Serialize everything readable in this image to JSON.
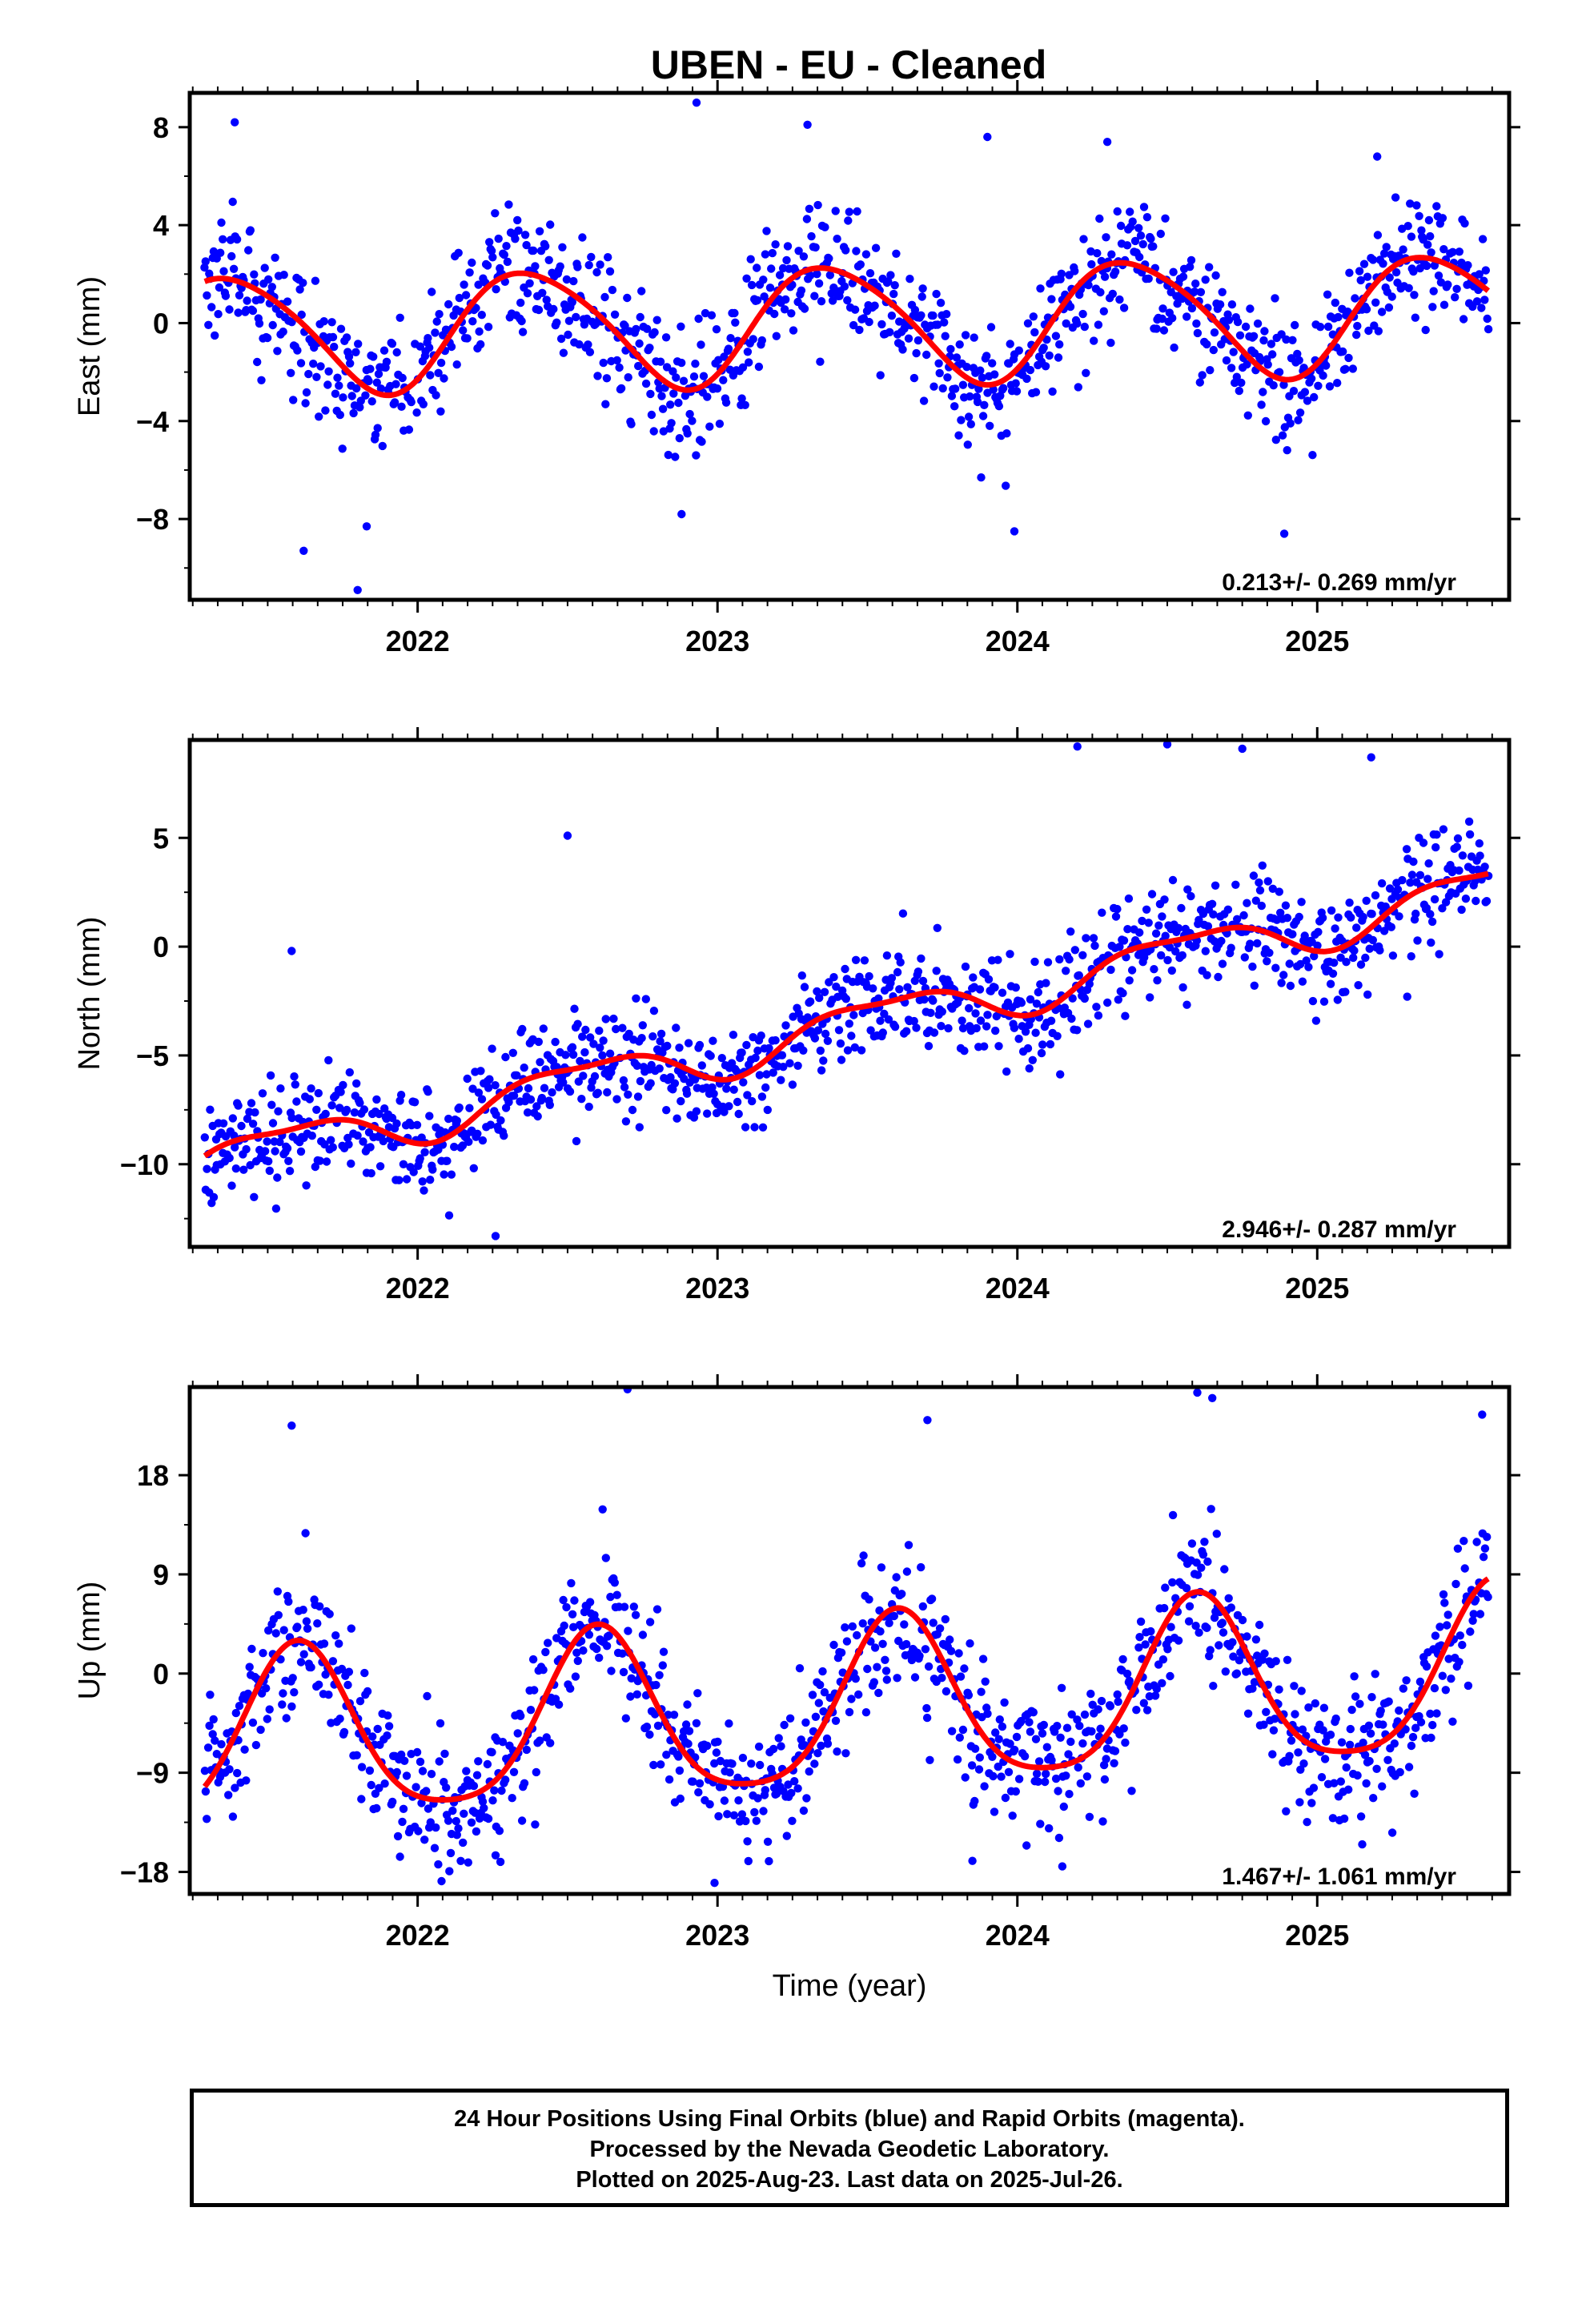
{
  "title": "UBEN  - EU - Cleaned",
  "colors": {
    "points": "#0000ff",
    "fit": "#ff0000",
    "frame": "#000000"
  },
  "chart_data": [
    {
      "type": "scatter",
      "name": "east",
      "ylabel": "East (mm)",
      "xlabel": "",
      "rate": "0.213+/- 0.269 mm/yr",
      "xlim": [
        2021.24,
        2025.64
      ],
      "ylim": [
        -11.3,
        9.4
      ],
      "yticks": [
        8,
        4,
        0,
        -4,
        -8
      ],
      "ytick_labels": [
        "8",
        "4",
        "0",
        "−4",
        "−8"
      ],
      "xticks": [
        2022,
        2023,
        2024,
        2025
      ],
      "xtick_labels": [
        "2022",
        "2023",
        "2024",
        "2025"
      ],
      "x_start": 2021.29,
      "x_end": 2025.57,
      "model": {
        "offset": 0.0,
        "rate": 0.213,
        "annual_amp": 2.4,
        "annual_peak": 0.38,
        "semi_amp": 0.3,
        "semi_peak": 0.2
      },
      "scatter_sd": 1.3,
      "outliers": [
        [
          2021.39,
          8.2
        ],
        [
          2022.93,
          9.0
        ],
        [
          2021.8,
          -10.9
        ],
        [
          2021.62,
          -9.3
        ],
        [
          2021.83,
          -8.3
        ],
        [
          2023.99,
          -8.5
        ],
        [
          2024.89,
          -8.6
        ],
        [
          2022.88,
          -7.8
        ],
        [
          2023.3,
          8.1
        ],
        [
          2024.3,
          7.4
        ],
        [
          2023.9,
          7.6
        ],
        [
          2025.2,
          6.8
        ]
      ]
    },
    {
      "type": "scatter",
      "name": "north",
      "ylabel": "North (mm)",
      "xlabel": "",
      "rate": "2.946+/- 0.287 mm/yr",
      "xlim": [
        2021.24,
        2025.64
      ],
      "ylim": [
        -13.8,
        9.5
      ],
      "yticks": [
        5,
        0,
        -5,
        -10
      ],
      "ytick_labels": [
        "5",
        "0",
        "−5",
        "−10"
      ],
      "xticks": [
        2022,
        2023,
        2024,
        2025
      ],
      "xtick_labels": [
        "2022",
        "2023",
        "2024",
        "2025"
      ],
      "x_start": 2021.29,
      "x_end": 2025.57,
      "model": {
        "offset": -3.6,
        "rate": 2.946,
        "annual_amp": 1.0,
        "annual_peak": 0.55,
        "semi_amp": 0.35,
        "semi_peak": 0.3
      },
      "scatter_sd": 1.2,
      "outliers": [
        [
          2022.26,
          -13.3
        ],
        [
          2021.83,
          -10.4
        ],
        [
          2022.5,
          5.1
        ],
        [
          2024.2,
          9.2
        ],
        [
          2024.5,
          9.3
        ],
        [
          2024.75,
          9.1
        ],
        [
          2025.3,
          -2.3
        ],
        [
          2024.04,
          -5.6
        ],
        [
          2022.74,
          -8.3
        ],
        [
          2021.58,
          -0.2
        ],
        [
          2025.18,
          8.7
        ]
      ]
    },
    {
      "type": "scatter",
      "name": "up",
      "ylabel": "Up (mm)",
      "xlabel": "Time (year)",
      "rate": "1.467+/- 1.061 mm/yr",
      "xlim": [
        2021.24,
        2025.64
      ],
      "ylim": [
        -20.0,
        26.0
      ],
      "yticks": [
        18,
        9,
        0,
        -9,
        -18
      ],
      "ytick_labels": [
        "18",
        "9",
        "0",
        "−9",
        "−18"
      ],
      "xticks": [
        2022,
        2023,
        2024,
        2025
      ],
      "xtick_labels": [
        "2022",
        "2023",
        "2024",
        "2025"
      ],
      "x_start": 2021.29,
      "x_end": 2025.57,
      "model": {
        "offset": -3.3,
        "rate": 1.467,
        "annual_amp": 7.6,
        "annual_peak": 0.6,
        "semi_amp": 1.4,
        "semi_peak": 0.1
      },
      "scatter_sd": 3.3,
      "outliers": [
        [
          2021.58,
          22.5
        ],
        [
          2022.7,
          25.8
        ],
        [
          2023.7,
          23.0
        ],
        [
          2024.6,
          25.5
        ],
        [
          2024.65,
          25.0
        ],
        [
          2025.55,
          23.5
        ],
        [
          2022.99,
          -19.0
        ],
        [
          2025.15,
          -15.5
        ],
        [
          2022.26,
          -16.5
        ],
        [
          2023.85,
          -17.0
        ],
        [
          2024.15,
          -17.5
        ]
      ]
    }
  ],
  "footer": {
    "line1": "24 Hour Positions Using Final Orbits (blue) and Rapid Orbits (magenta).",
    "line2": "Processed by the Nevada Geodetic Laboratory.",
    "line3": "Plotted on 2025-Aug-23. Last data on 2025-Jul-26."
  }
}
